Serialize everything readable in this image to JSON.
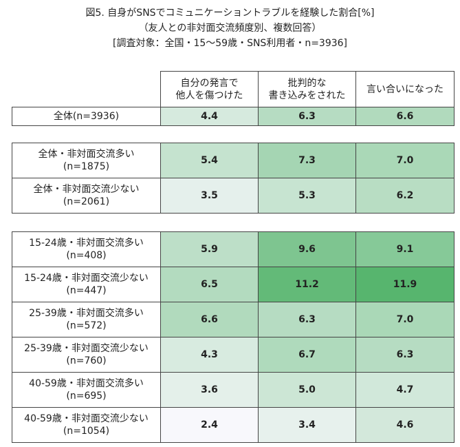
{
  "title": [
    "図5. 自身がSNSでコミュニケーショントラブルを経験した割合[%]",
    "（友人との非対面交流頻度別、複数回答）",
    "[調査対象：全国・15～59歳・SNS利用者・n=3936]"
  ],
  "table": {
    "columns": [
      [
        "自分の発言で",
        "他人を傷つけた"
      ],
      [
        "批判的な",
        "書き込みをされた"
      ],
      [
        "言い合いになった"
      ]
    ],
    "groups": [
      [
        {
          "label": [
            "全体(n=3936)"
          ],
          "cells": [
            "4.4",
            "6.3",
            "6.6"
          ]
        }
      ],
      [
        {
          "label": [
            "全体・非対面交流多い",
            "(n=1875)"
          ],
          "cells": [
            "5.4",
            "7.3",
            "7.0"
          ]
        },
        {
          "label": [
            "全体・非対面交流少ない",
            "(n=2061)"
          ],
          "cells": [
            "3.5",
            "5.3",
            "6.2"
          ]
        }
      ],
      [
        {
          "label": [
            "15-24歳・非対面交流多い",
            "(n=408)"
          ],
          "cells": [
            "5.9",
            "9.6",
            "9.1"
          ]
        },
        {
          "label": [
            "15-24歳・非対面交流少ない",
            "(n=447)"
          ],
          "cells": [
            "6.5",
            "11.2",
            "11.9"
          ]
        },
        {
          "label": [
            "25-39歳・非対面交流多い",
            "(n=572)"
          ],
          "cells": [
            "6.6",
            "6.3",
            "7.0"
          ]
        },
        {
          "label": [
            "25-39歳・非対面交流少ない",
            "(n=760)"
          ],
          "cells": [
            "4.3",
            "6.7",
            "6.3"
          ]
        },
        {
          "label": [
            "40-59歳・非対面交流多い",
            "(n=695)"
          ],
          "cells": [
            "3.6",
            "5.0",
            "4.7"
          ]
        },
        {
          "label": [
            "40-59歳・非対面交流少ない",
            "(n=1054)"
          ],
          "cells": [
            "2.4",
            "3.4",
            "4.6"
          ]
        }
      ]
    ]
  }
}
